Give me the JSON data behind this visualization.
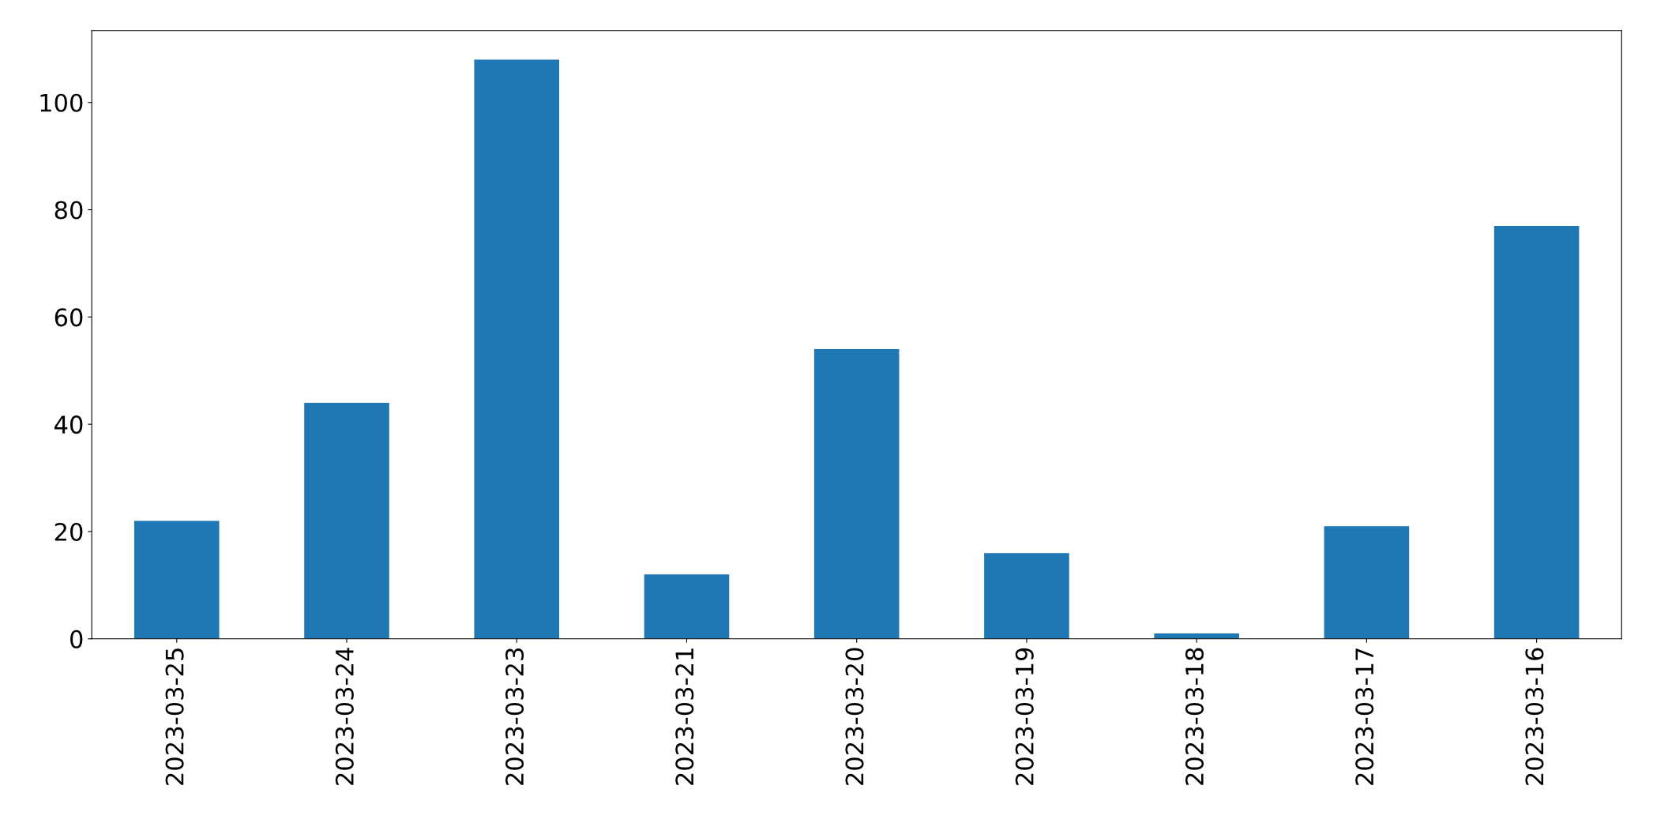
{
  "chart_data": {
    "type": "bar",
    "categories": [
      "2023-03-25",
      "2023-03-24",
      "2023-03-23",
      "2023-03-21",
      "2023-03-20",
      "2023-03-19",
      "2023-03-18",
      "2023-03-17",
      "2023-03-16"
    ],
    "values": [
      22,
      44,
      108,
      12,
      54,
      16,
      1,
      21,
      77
    ],
    "color": "#1f77b4",
    "ylim": [
      0,
      113.4
    ],
    "yticks": [
      0,
      20,
      40,
      60,
      80,
      100
    ],
    "grid": false,
    "legend": false
  }
}
